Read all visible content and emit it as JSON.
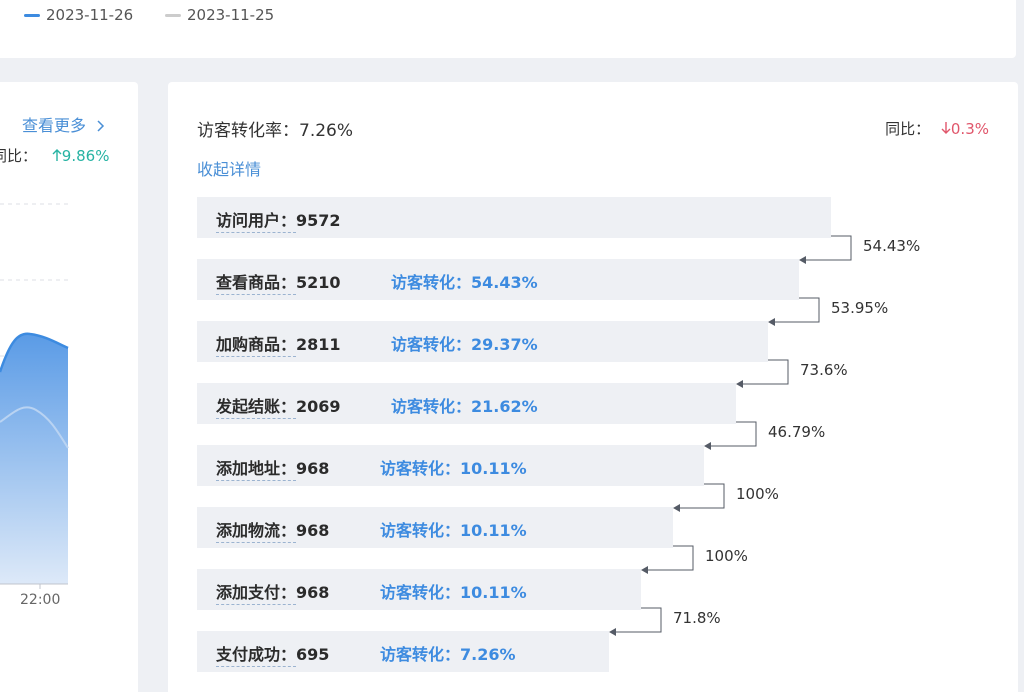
{
  "legend": [
    {
      "label": "2023-11-26",
      "color": "#3d8be0"
    },
    {
      "label": "2023-11-25",
      "color": "#cccccc"
    }
  ],
  "left_panel": {
    "view_more": "查看更多",
    "view_more_icon": "chevron-right-icon",
    "yoy_label": "同比：",
    "yoy_value": "9.86%",
    "yoy_icon": "arrow-up-icon",
    "x_tick": "22:00",
    "colors": {
      "accent": "#3d8be0",
      "up": "#27b3a3"
    }
  },
  "conversion": {
    "title": "访客转化率：7.26%",
    "yoy_label": "同比：",
    "yoy_value": "0.3%",
    "yoy_icon": "arrow-down-icon",
    "collapse": "收起详情",
    "colors": {
      "accent": "#3d8be0",
      "down": "#e0566b"
    },
    "stages": [
      {
        "label": "访问用户：",
        "value": "9572",
        "conv": "",
        "fraction": 1.0
      },
      {
        "label": "查看商品：",
        "value": "5210",
        "conv": "访客转化：54.43%",
        "fraction": 0.95
      },
      {
        "label": "加购商品：",
        "value": "2811",
        "conv": "访客转化：29.37%",
        "fraction": 0.9
      },
      {
        "label": "发起结账：",
        "value": "2069",
        "conv": "访客转化：21.62%",
        "fraction": 0.85
      },
      {
        "label": "添加地址：",
        "value": "968",
        "conv": "访客转化：10.11%",
        "fraction": 0.8
      },
      {
        "label": "添加物流：",
        "value": "968",
        "conv": "访客转化：10.11%",
        "fraction": 0.75
      },
      {
        "label": "添加支付：",
        "value": "968",
        "conv": "访客转化：10.11%",
        "fraction": 0.7
      },
      {
        "label": "支付成功：",
        "value": "695",
        "conv": "访客转化：7.26%",
        "fraction": 0.65
      }
    ],
    "step_rates": [
      "54.43%",
      "53.95%",
      "73.6%",
      "46.79%",
      "100%",
      "100%",
      "71.8%"
    ]
  }
}
